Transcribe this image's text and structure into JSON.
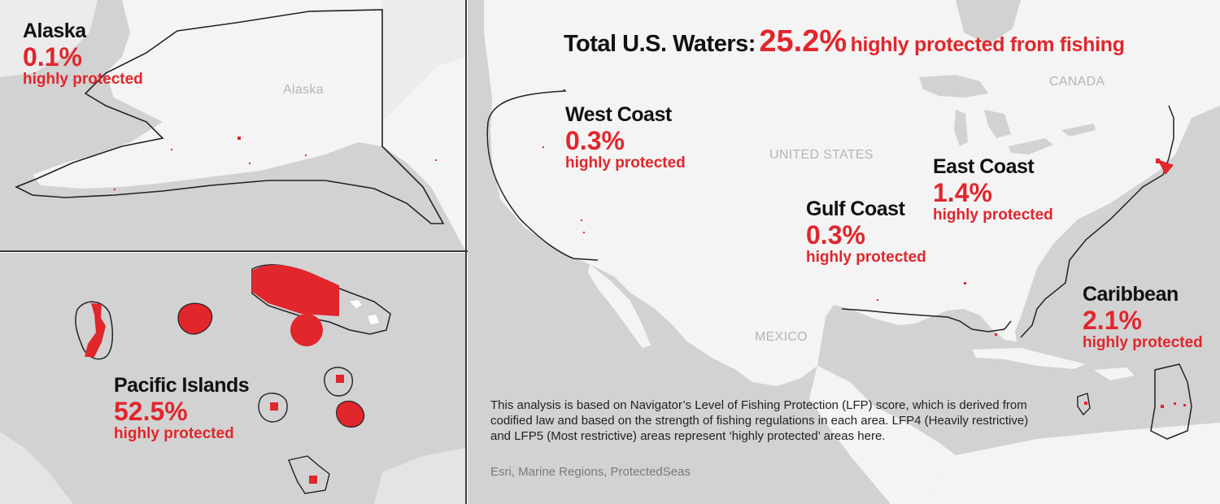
{
  "headline": {
    "lead": "Total U.S. Waters:",
    "value": "25.2%",
    "tail": "highly protected from fishing"
  },
  "regions": {
    "alaska": {
      "name": "Alaska",
      "pct": "0.1%",
      "sub": "highly protected"
    },
    "pacific": {
      "name": "Pacific Islands",
      "pct": "52.5%",
      "sub": "highly protected"
    },
    "west_coast": {
      "name": "West Coast",
      "pct": "0.3%",
      "sub": "highly protected"
    },
    "gulf_coast": {
      "name": "Gulf Coast",
      "pct": "0.3%",
      "sub": "highly protected"
    },
    "east_coast": {
      "name": "East Coast",
      "pct": "1.4%",
      "sub": "highly protected"
    },
    "caribbean": {
      "name": "Caribbean",
      "pct": "2.1%",
      "sub": "highly protected"
    }
  },
  "place_labels": {
    "alaska": "Alaska",
    "canada": "CANADA",
    "united_states": "UNITED STATES",
    "mexico": "MEXICO"
  },
  "note": "This analysis is based on Navigator’s Level of Fishing Protection (LFP) score, which is derived from codified law and based on the strength of fishing regulations in each area. LFP4 (Heavily restrictive) and LFP5 (Most restrictive) areas represent ‘highly protected’ areas here.",
  "source": "Esri, Marine Regions, ProtectedSeas",
  "colors": {
    "ocean": "#d2d2d2",
    "land": "#f4f4f4",
    "protected": "#e1262c",
    "boundary": "#222222"
  }
}
